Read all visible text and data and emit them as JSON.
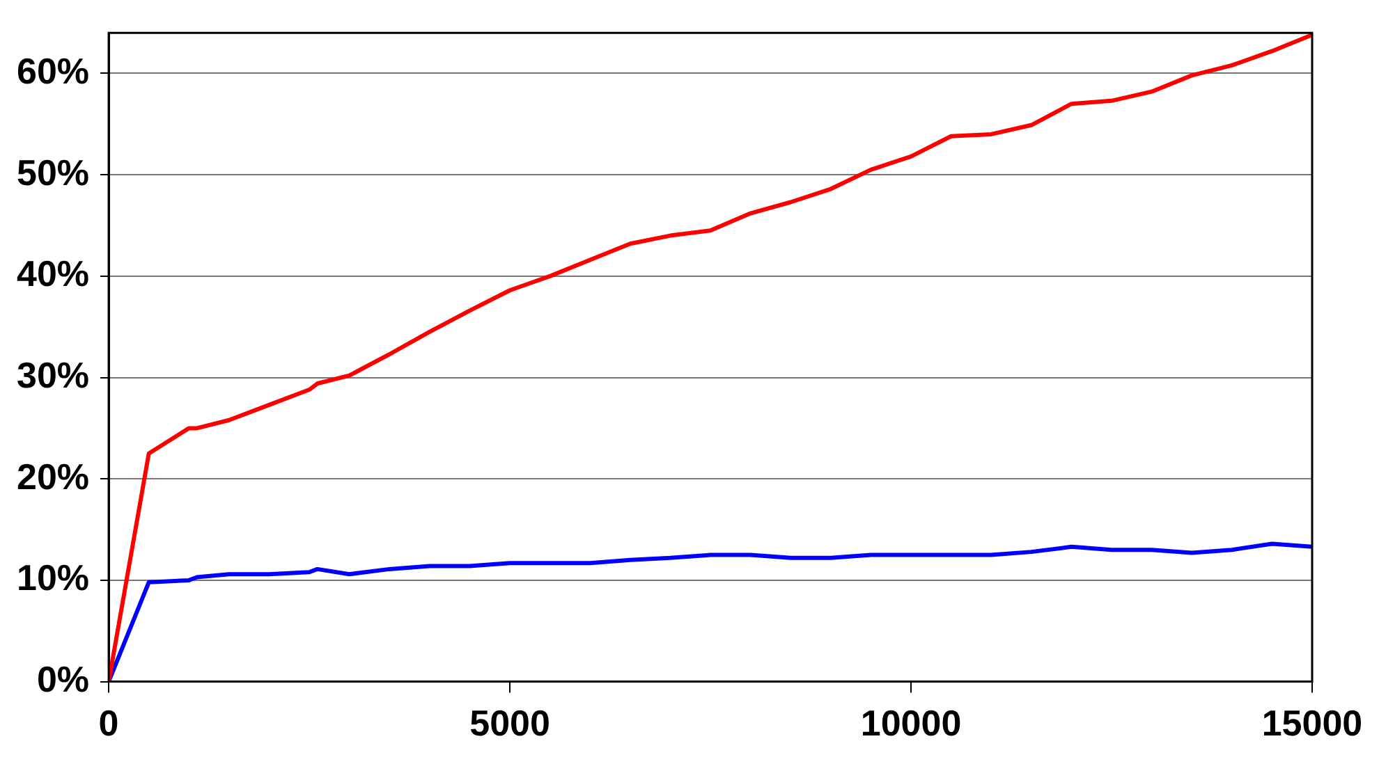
{
  "chart_data": {
    "type": "line",
    "x": [
      0,
      500,
      1000,
      1100,
      1500,
      2000,
      2500,
      2600,
      3000,
      3500,
      4000,
      4500,
      5000,
      5500,
      6000,
      6500,
      7000,
      7500,
      8000,
      8500,
      9000,
      9500,
      10000,
      10500,
      11000,
      11500,
      12000,
      12500,
      13000,
      13500,
      14000,
      14500,
      15000
    ],
    "series": [
      {
        "color": "#ff0000",
        "values": [
          0,
          22.5,
          25,
          25,
          25.8,
          27.3,
          28.8,
          29.4,
          30.2,
          32.3,
          34.5,
          36.6,
          38.6,
          40,
          41.6,
          43.2,
          44,
          44.5,
          46.2,
          47.3,
          48.6,
          50.5,
          51.8,
          53.8,
          54,
          54.9,
          57,
          57.3,
          58.2,
          59.8,
          60.8,
          62.2,
          63.8
        ]
      },
      {
        "color": "#0000ff",
        "values": [
          0,
          9.8,
          10,
          10.3,
          10.6,
          10.6,
          10.8,
          11.1,
          10.6,
          11.1,
          11.4,
          11.4,
          11.7,
          11.7,
          11.7,
          12,
          12.2,
          12.5,
          12.5,
          12.2,
          12.2,
          12.5,
          12.5,
          12.5,
          12.5,
          12.8,
          13.3,
          13,
          13,
          12.7,
          13,
          13.6,
          13.3
        ]
      }
    ],
    "xlim": [
      0,
      15000
    ],
    "xticks": [
      0,
      5000,
      10000,
      15000
    ],
    "ylim": [
      0,
      64
    ],
    "yticks": [
      {
        "value": 0,
        "label": "0%"
      },
      {
        "value": 10,
        "label": "10%"
      },
      {
        "value": 20,
        "label": "20%"
      },
      {
        "value": 30,
        "label": "30%"
      },
      {
        "value": 40,
        "label": "40%"
      },
      {
        "value": 50,
        "label": "50%"
      },
      {
        "value": 60,
        "label": "60%"
      }
    ],
    "grid": "y",
    "legend": false,
    "marker": "none",
    "line_style": "solid"
  }
}
